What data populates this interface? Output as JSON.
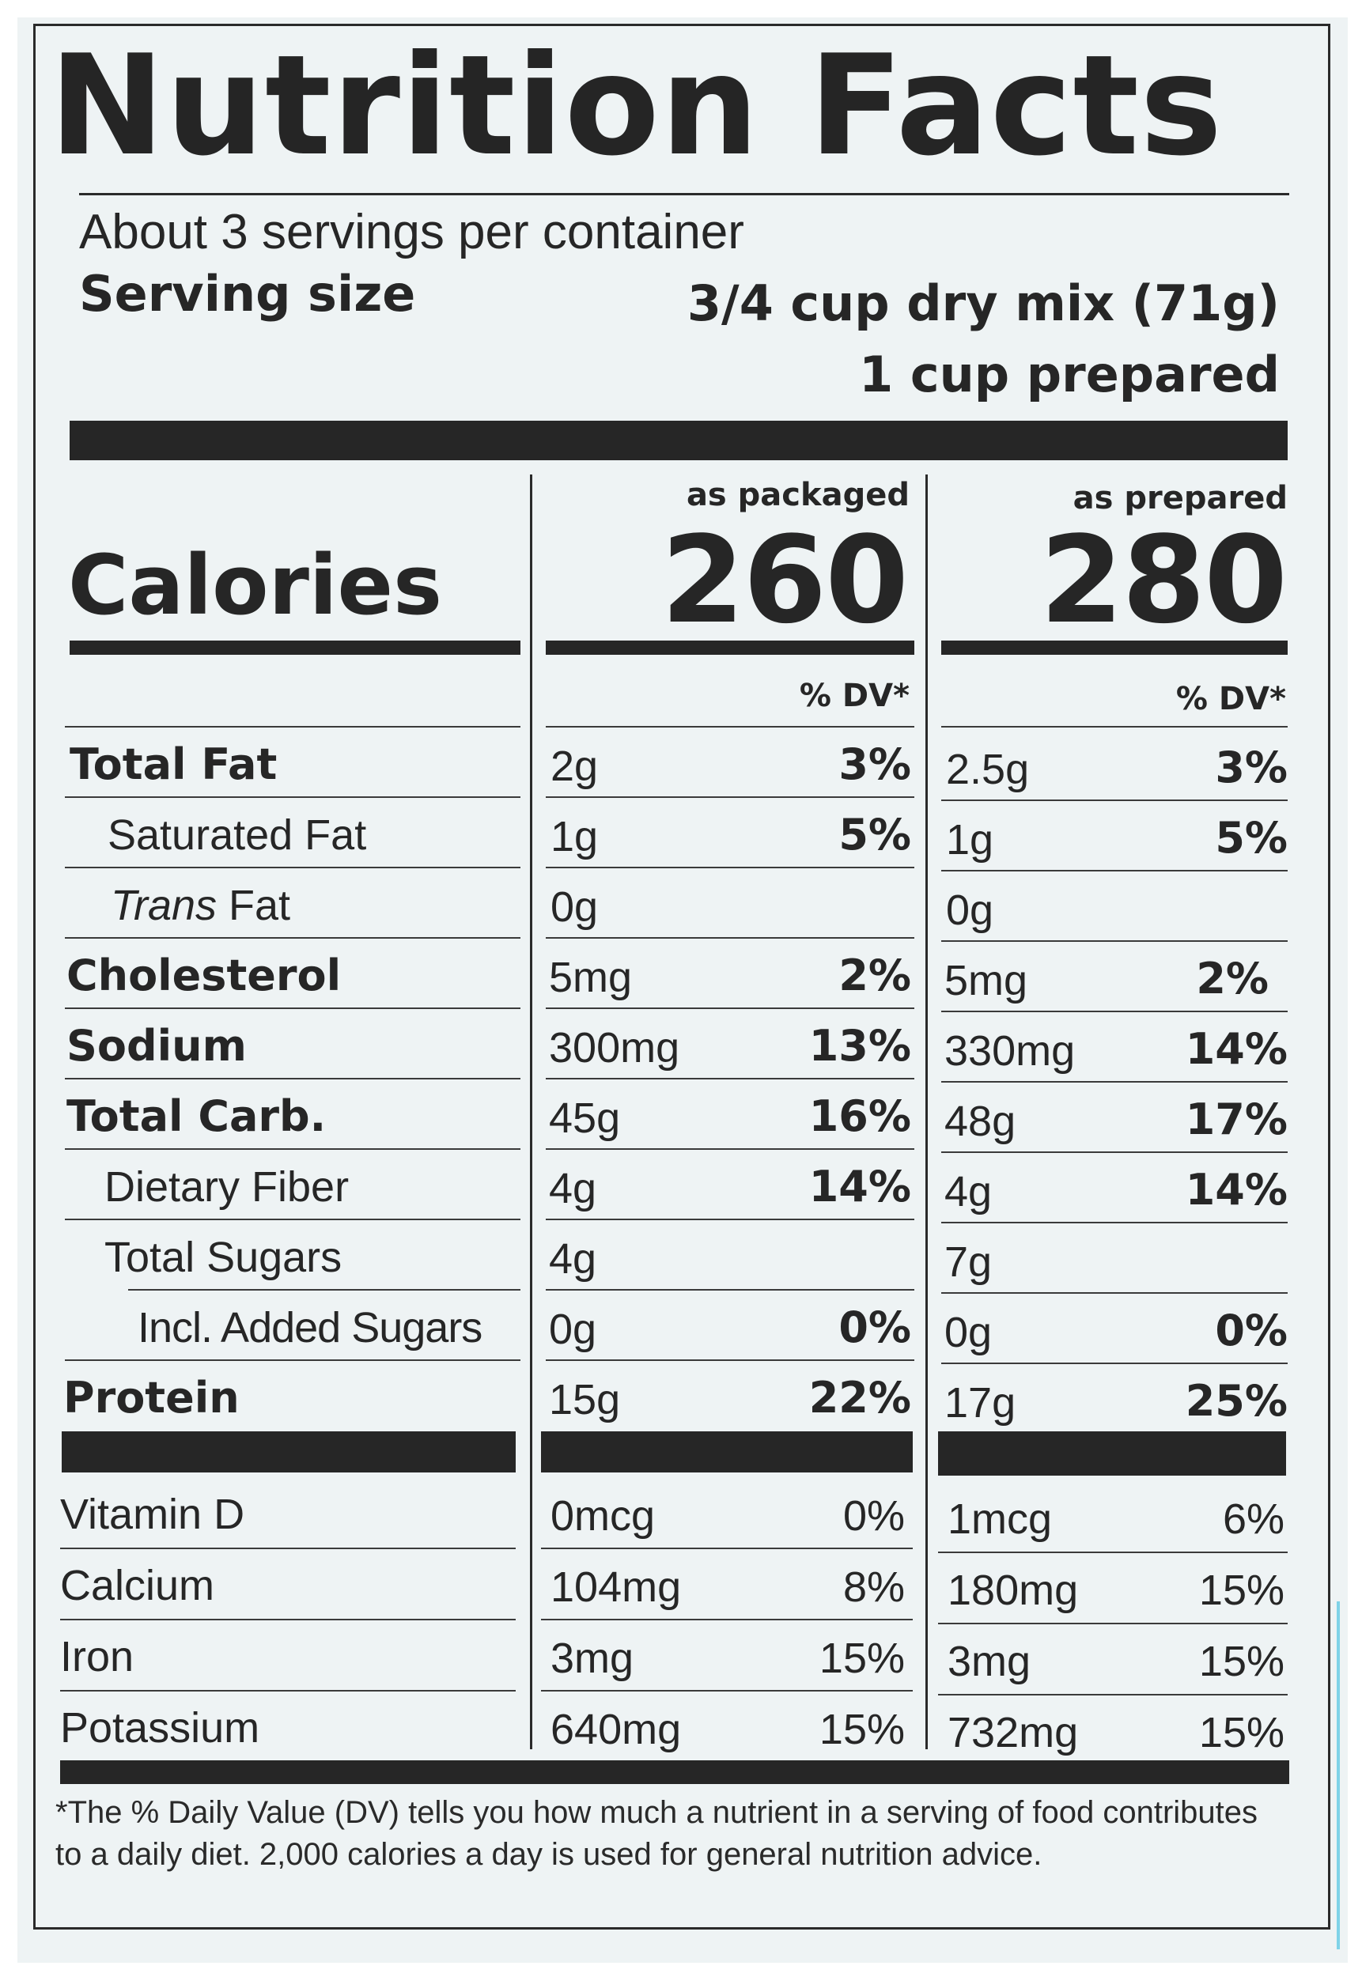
{
  "label": {
    "title": "Nutrition Facts",
    "servings_per_container": "About 3 servings per container",
    "serving_size_label": "Serving size",
    "serving_size_value": "3/4 cup dry mix (71g)",
    "serving_size_prepared": "1 cup prepared",
    "calories_label": "Calories",
    "columns": [
      {
        "heading": "as packaged",
        "calories": "260",
        "dv_heading": "% DV*"
      },
      {
        "heading": "as prepared",
        "calories": "280",
        "dv_heading": "% DV*"
      }
    ],
    "nutrients": [
      {
        "name": "Total Fat",
        "packaged_amount": "2g",
        "packaged_dv": "3%",
        "prepared_amount": "2.5g",
        "prepared_dv": "3%"
      },
      {
        "name": "Saturated Fat",
        "packaged_amount": "1g",
        "packaged_dv": "5%",
        "prepared_amount": "1g",
        "prepared_dv": "5%"
      },
      {
        "name_italic": "Trans",
        "name": " Fat",
        "packaged_amount": "0g",
        "packaged_dv": "",
        "prepared_amount": "0g",
        "prepared_dv": ""
      },
      {
        "name": "Cholesterol",
        "packaged_amount": "5mg",
        "packaged_dv": "2%",
        "prepared_amount": "5mg",
        "prepared_dv": "2%"
      },
      {
        "name": "Sodium",
        "packaged_amount": "300mg",
        "packaged_dv": "13%",
        "prepared_amount": "330mg",
        "prepared_dv": "14%"
      },
      {
        "name": "Total Carb.",
        "packaged_amount": "45g",
        "packaged_dv": "16%",
        "prepared_amount": "48g",
        "prepared_dv": "17%"
      },
      {
        "name": "Dietary Fiber",
        "packaged_amount": "4g",
        "packaged_dv": "14%",
        "prepared_amount": "4g",
        "prepared_dv": "14%"
      },
      {
        "name": "Total Sugars",
        "packaged_amount": "4g",
        "packaged_dv": "",
        "prepared_amount": "7g",
        "prepared_dv": ""
      },
      {
        "name": "Incl. Added Sugars",
        "packaged_amount": "0g",
        "packaged_dv": "0%",
        "prepared_amount": "0g",
        "prepared_dv": "0%"
      },
      {
        "name": "Protein",
        "packaged_amount": "15g",
        "packaged_dv": "22%",
        "prepared_amount": "17g",
        "prepared_dv": "25%"
      }
    ],
    "vitamins": [
      {
        "name": "Vitamin D",
        "packaged_amount": "0mcg",
        "packaged_dv": "0%",
        "prepared_amount": "1mcg",
        "prepared_dv": "6%"
      },
      {
        "name": "Calcium",
        "packaged_amount": "104mg",
        "packaged_dv": "8%",
        "prepared_amount": "180mg",
        "prepared_dv": "15%"
      },
      {
        "name": "Iron",
        "packaged_amount": "3mg",
        "packaged_dv": "15%",
        "prepared_amount": "3mg",
        "prepared_dv": "15%"
      },
      {
        "name": "Potassium",
        "packaged_amount": "640mg",
        "packaged_dv": "15%",
        "prepared_amount": "732mg",
        "prepared_dv": "15%"
      }
    ],
    "footnote_asterisk": "*",
    "footnote": "The % Daily Value (DV) tells you how much a nutrient in a serving of food contributes to a daily diet. 2,000 calories a day is used for general nutrition advice."
  }
}
